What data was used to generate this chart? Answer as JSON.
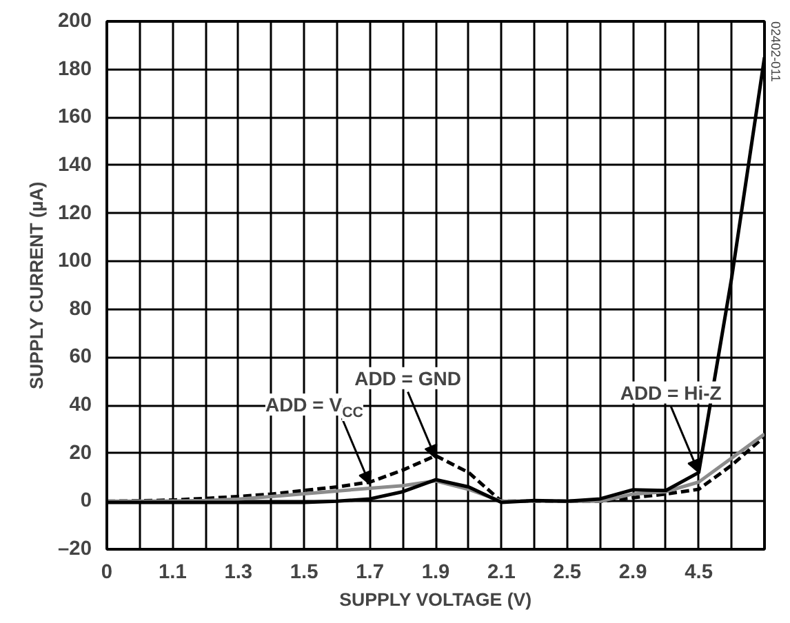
{
  "chart_data": {
    "type": "line",
    "xlabel": "SUPPLY VOLTAGE (V)",
    "ylabel": "SUPPLY CURRENT (µA)",
    "categories": [
      "0",
      null,
      "1.1",
      null,
      "1.3",
      null,
      "1.5",
      null,
      "1.7",
      null,
      "1.9",
      null,
      "2.1",
      null,
      "2.5",
      null,
      "2.9",
      null,
      "4.5",
      null,
      null
    ],
    "ylim": [
      -20,
      200
    ],
    "yticks": [
      {
        "value": -20,
        "label": "–20"
      },
      0,
      20,
      40,
      60,
      80,
      100,
      120,
      140,
      160,
      180,
      200
    ],
    "grid": true,
    "series": [
      {
        "color": "#000000",
        "line_style": "dashed",
        "values": [
          0,
          0.2,
          0.5,
          1.2,
          2,
          3,
          4.5,
          6,
          8,
          13,
          19,
          12,
          0,
          0,
          0,
          0,
          1.5,
          3,
          5,
          15,
          27
        ]
      },
      {
        "color": "#8c8c8c",
        "line_style": "solid",
        "values": [
          0,
          0,
          0.1,
          0.3,
          0.9,
          2,
          3.1,
          4.3,
          5.4,
          6.5,
          8.5,
          5,
          0,
          0,
          0,
          0,
          3,
          4,
          8,
          18,
          28
        ]
      },
      {
        "color": "#000000",
        "line_style": "solid",
        "values": [
          -0.5,
          -0.5,
          -0.5,
          -0.5,
          -0.5,
          -0.5,
          -0.5,
          0,
          1,
          4,
          9,
          6,
          -0.5,
          0.3,
          0,
          1,
          4.8,
          4.5,
          12,
          93,
          185
        ]
      }
    ],
    "annotations": [
      {
        "text": "ADD = V$_{CC}$",
        "x": "1.7",
        "y": 7
      },
      {
        "text": "ADD = GND",
        "x": "1.9",
        "y": 18
      },
      {
        "text": "ADD = Hi-Z",
        "x": "4.5",
        "y": 12
      },
      "02402-011"
    ]
  }
}
